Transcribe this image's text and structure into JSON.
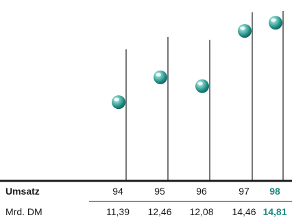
{
  "chart_data": {
    "type": "lollipop",
    "categories": [
      "94",
      "95",
      "96",
      "97",
      "98"
    ],
    "values": [
      11.39,
      12.46,
      12.08,
      14.46,
      14.81
    ],
    "value_labels": [
      "11,39",
      "12,46",
      "12,08",
      "14,46",
      "14,81"
    ],
    "row_header": "Umsatz",
    "unit_label": "Mrd. DM",
    "highlight_index": 4,
    "ylim": [
      8,
      15.2
    ],
    "grid": false,
    "colors": {
      "ball": "#1f8a82",
      "ball_dark": "#0f5a55",
      "ball_light": "#bfe9e4",
      "highlight_text": "#1f8a82",
      "stem": "#1a1a1a"
    }
  }
}
